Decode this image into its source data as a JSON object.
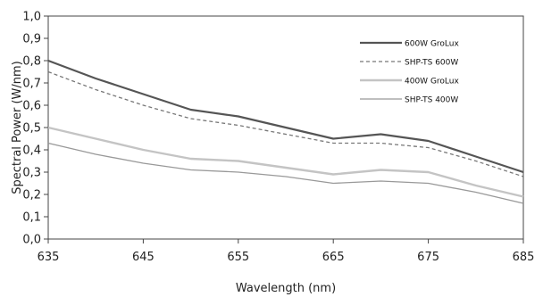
{
  "chart_data": {
    "type": "line",
    "xlabel": "Wavelength (nm)",
    "ylabel": "Spectral Power (W/nm)",
    "xlim": [
      635,
      685
    ],
    "ylim": [
      0.0,
      1.0
    ],
    "x_ticks": [
      "635",
      "645",
      "655",
      "665",
      "675",
      "685"
    ],
    "y_ticks": [
      "0,0",
      "0,1",
      "0,2",
      "0,3",
      "0,4",
      "0,5",
      "0,6",
      "0,7",
      "0,8",
      "0,9",
      "1,0"
    ],
    "grid": false,
    "legend_position": "top-right",
    "x": [
      635,
      640,
      645,
      650,
      655,
      660,
      665,
      670,
      675,
      680,
      685
    ],
    "series": [
      {
        "name": "600W GroLux",
        "color": "#555555",
        "dash": "",
        "width": 2.2,
        "values": [
          0.8,
          0.72,
          0.65,
          0.58,
          0.55,
          0.5,
          0.45,
          0.47,
          0.44,
          0.37,
          0.3
        ]
      },
      {
        "name": "SHP-TS 600W",
        "color": "#777777",
        "dash": "4,3",
        "width": 1.3,
        "values": [
          0.75,
          0.67,
          0.6,
          0.54,
          0.51,
          0.47,
          0.43,
          0.43,
          0.41,
          0.35,
          0.28
        ]
      },
      {
        "name": "400W GroLux",
        "color": "#c4c4c4",
        "dash": "",
        "width": 2.4,
        "values": [
          0.5,
          0.45,
          0.4,
          0.36,
          0.35,
          0.32,
          0.29,
          0.31,
          0.3,
          0.24,
          0.19
        ]
      },
      {
        "name": "SHP-TS 400W",
        "color": "#999999",
        "dash": "",
        "width": 1.3,
        "values": [
          0.43,
          0.38,
          0.34,
          0.31,
          0.3,
          0.28,
          0.25,
          0.26,
          0.25,
          0.21,
          0.16
        ]
      }
    ]
  }
}
